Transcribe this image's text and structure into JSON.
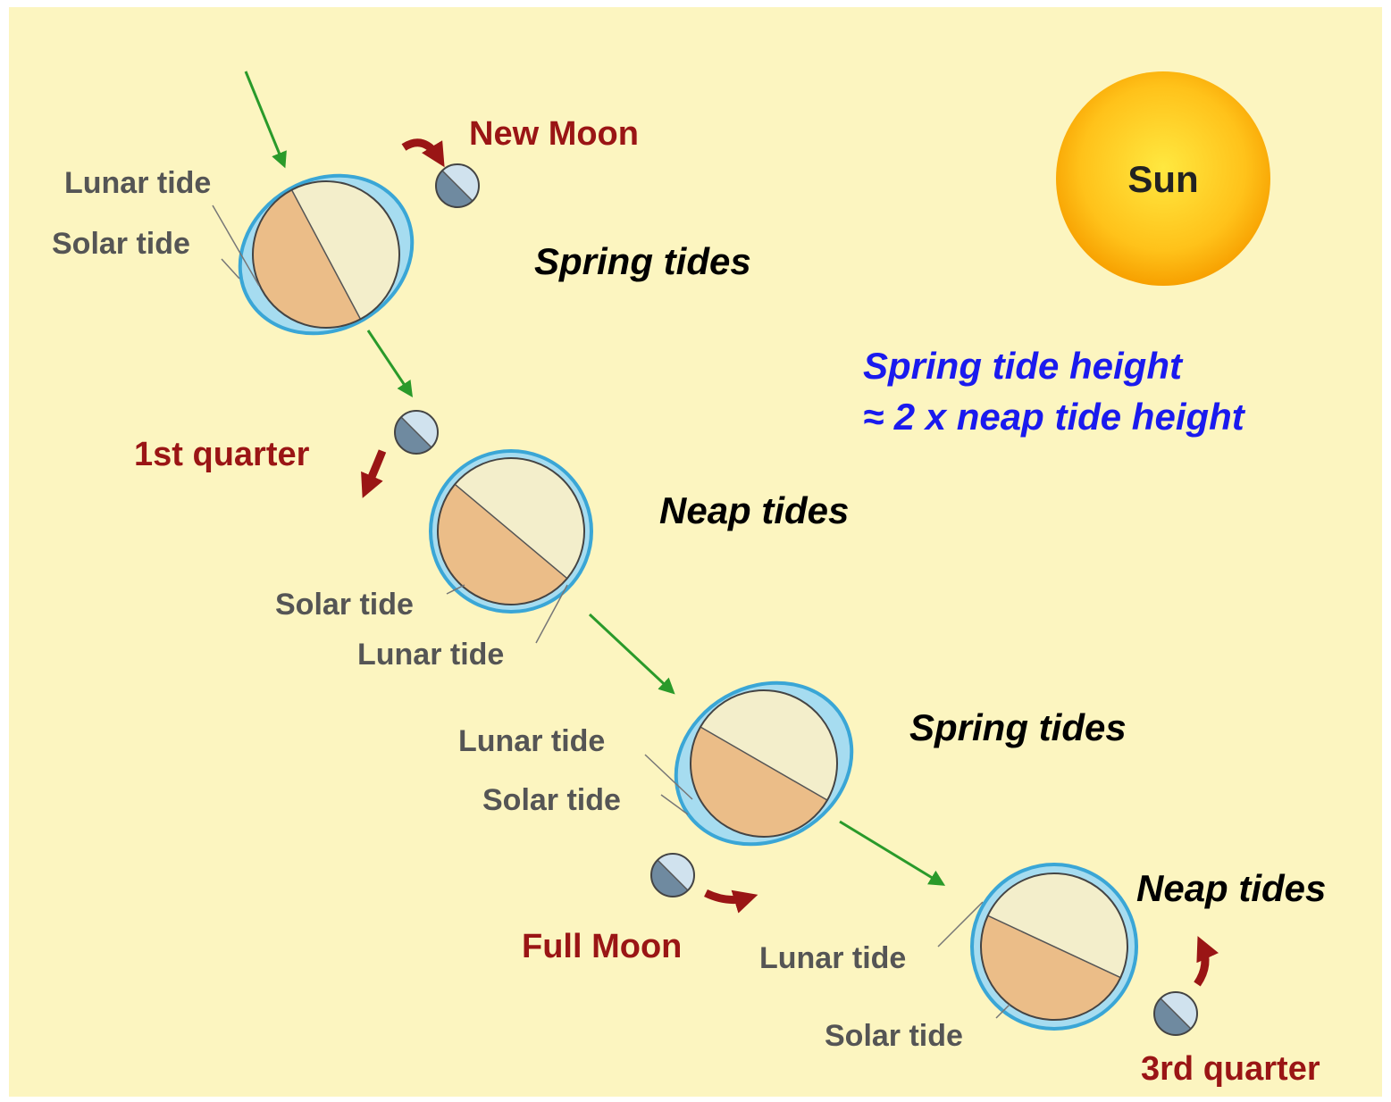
{
  "sun": {
    "label": "Sun"
  },
  "note": [
    "Spring tide height",
    "≈ 2 x neap tide height"
  ],
  "stages": [
    {
      "phase": "New Moon",
      "tides": "Spring tides",
      "labels": [
        "Lunar tide",
        "Solar tide"
      ]
    },
    {
      "phase": "1st quarter",
      "tides": "Neap tides",
      "labels": [
        "Solar tide",
        "Lunar tide"
      ]
    },
    {
      "phase": "Full Moon",
      "tides": "Spring tides",
      "labels": [
        "Lunar tide",
        "Solar tide"
      ]
    },
    {
      "phase": "3rd quarter",
      "tides": "Neap tides",
      "labels": [
        "Lunar tide",
        "Solar tide"
      ]
    }
  ]
}
